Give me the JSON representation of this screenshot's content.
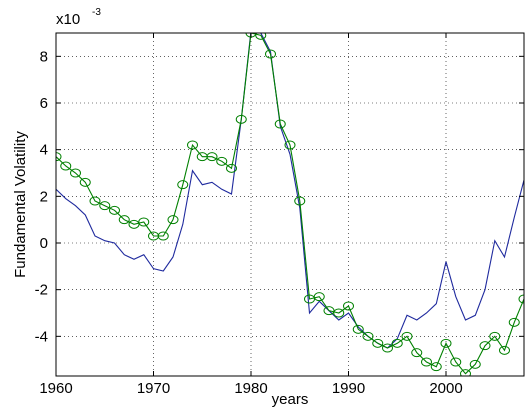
{
  "chart_data": {
    "type": "line",
    "xlabel": "years",
    "ylabel": "Fundamental Volatility",
    "y_multiplier": {
      "base": "x10",
      "exponent": "-3"
    },
    "xlim": [
      1960,
      2008
    ],
    "ylim": [
      -5.7,
      9
    ],
    "x_ticks": [
      1960,
      1970,
      1980,
      1990,
      2000
    ],
    "y_ticks": [
      -4,
      -2,
      0,
      2,
      4,
      6,
      8
    ],
    "grid": "dotted",
    "legend": "none",
    "colors": {
      "blue_series": "#1f2a9e",
      "green_series": "#008000"
    },
    "series": [
      {
        "style": "blue-solid-line",
        "x": [
          1960,
          1961,
          1962,
          1963,
          1964,
          1965,
          1966,
          1967,
          1968,
          1969,
          1970,
          1971,
          1972,
          1973,
          1974,
          1975,
          1976,
          1977,
          1978,
          1979,
          1980,
          1981,
          1982,
          1983,
          1984,
          1985,
          1986,
          1987,
          1988,
          1989,
          1990,
          1991,
          1992,
          1993,
          1994,
          1995,
          1996,
          1997,
          1998,
          1999,
          2000,
          2001,
          2002,
          2003,
          2004,
          2005,
          2006,
          2007,
          2008
        ],
        "y": [
          2.3,
          1.9,
          1.6,
          1.2,
          0.3,
          0.1,
          0.0,
          -0.5,
          -0.7,
          -0.5,
          -1.1,
          -1.2,
          -0.6,
          0.8,
          3.1,
          2.5,
          2.6,
          2.3,
          2.1,
          5.3,
          9.1,
          9.0,
          8.2,
          5.0,
          3.8,
          1.5,
          -3.0,
          -2.5,
          -2.9,
          -3.3,
          -3.0,
          -3.6,
          -4.0,
          -4.3,
          -4.5,
          -4.1,
          -3.1,
          -3.3,
          -3.0,
          -2.6,
          -0.8,
          -2.3,
          -3.3,
          -3.1,
          -2.0,
          0.1,
          -0.6,
          1.1,
          2.7
        ]
      },
      {
        "style": "green-line-circle-markers",
        "x": [
          1960,
          1961,
          1962,
          1963,
          1964,
          1965,
          1966,
          1967,
          1968,
          1969,
          1970,
          1971,
          1972,
          1973,
          1974,
          1975,
          1976,
          1977,
          1978,
          1979,
          1980,
          1981,
          1982,
          1983,
          1984,
          1985,
          1986,
          1987,
          1988,
          1989,
          1990,
          1991,
          1992,
          1993,
          1994,
          1995,
          1996,
          1997,
          1998,
          1999,
          2000,
          2001,
          2002,
          2003,
          2004,
          2005,
          2006,
          2007,
          2008
        ],
        "y": [
          3.7,
          3.3,
          3.0,
          2.6,
          1.8,
          1.6,
          1.4,
          1.0,
          0.8,
          0.9,
          0.3,
          0.3,
          1.0,
          2.5,
          4.2,
          3.7,
          3.7,
          3.5,
          3.2,
          5.3,
          9.0,
          8.9,
          8.1,
          5.1,
          4.2,
          1.8,
          -2.4,
          -2.3,
          -2.9,
          -3.0,
          -2.7,
          -3.7,
          -4.0,
          -4.3,
          -4.5,
          -4.3,
          -4.0,
          -4.7,
          -5.1,
          -5.3,
          -4.3,
          -5.1,
          -5.6,
          -5.2,
          -4.4,
          -4.0,
          -4.6,
          -3.4,
          -2.4
        ]
      }
    ]
  }
}
